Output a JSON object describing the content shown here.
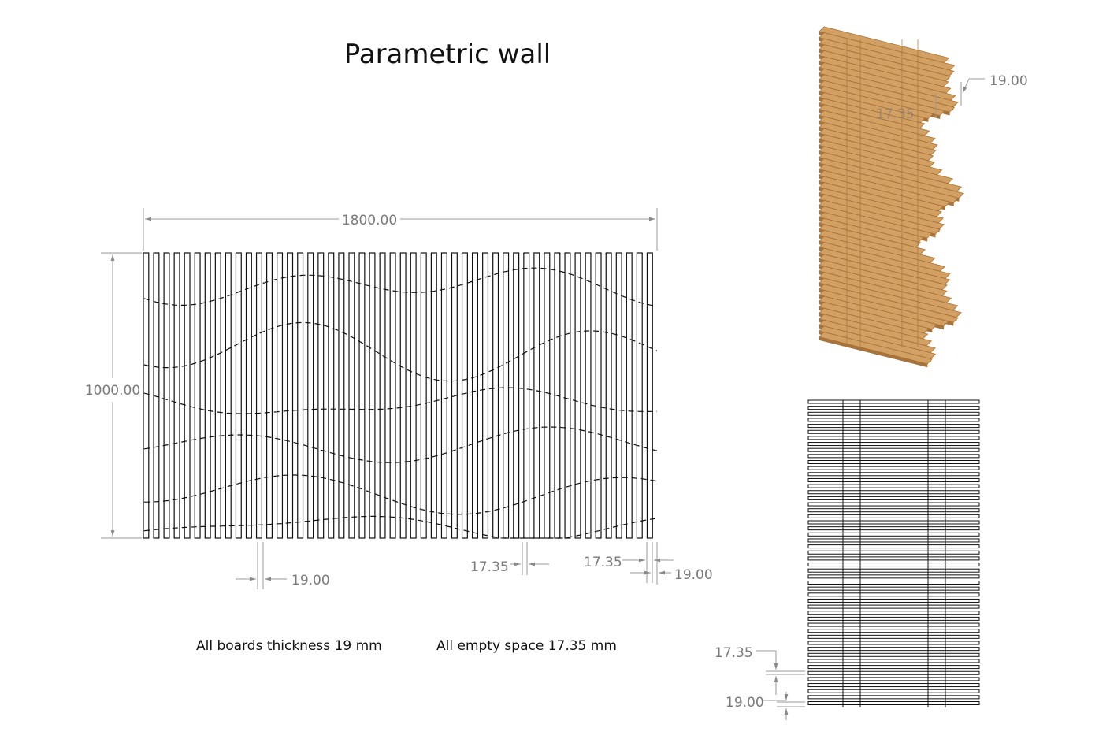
{
  "title": "Parametric wall",
  "notes": {
    "boards_thickness": "All boards thickness 19 mm",
    "empty_space": "All empty space 17.35 mm"
  },
  "front_view": {
    "width_label": "1800.00",
    "height_label": "1000.00",
    "board_label_1": "19.00",
    "gap_label_1": "17.35",
    "gap_label_2": "17.35",
    "board_label_2": "19.00"
  },
  "iso_view": {
    "board_label": "19.00",
    "gap_label": "17.35"
  },
  "side_view": {
    "gap_label": "17.35",
    "board_label": "19.00"
  },
  "colors": {
    "wood": "#d2a063",
    "wood_dark": "#a8733b",
    "line": "#111111",
    "dimension": "#7a7a7a"
  }
}
